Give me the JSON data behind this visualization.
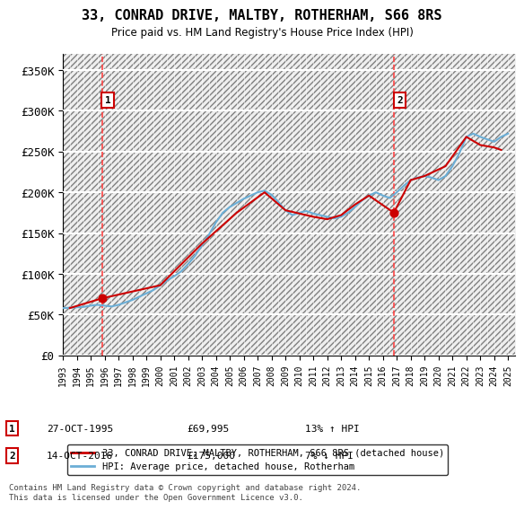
{
  "title": "33, CONRAD DRIVE, MALTBY, ROTHERHAM, S66 8RS",
  "subtitle": "Price paid vs. HM Land Registry's House Price Index (HPI)",
  "ylabel_ticks": [
    "£0",
    "£50K",
    "£100K",
    "£150K",
    "£200K",
    "£250K",
    "£300K",
    "£350K"
  ],
  "ytick_values": [
    0,
    50000,
    100000,
    150000,
    200000,
    250000,
    300000,
    350000
  ],
  "ylim": [
    0,
    370000
  ],
  "xlim_start": 1993.0,
  "xlim_end": 2025.5,
  "hpi_color": "#6baed6",
  "price_color": "#cc0000",
  "dashed_line_color": "#ff4444",
  "background_hatch_color": "#e8e8e8",
  "legend_label_price": "33, CONRAD DRIVE, MALTBY, ROTHERHAM, S66 8RS (detached house)",
  "legend_label_hpi": "HPI: Average price, detached house, Rotherham",
  "transaction1_date": "27-OCT-1995",
  "transaction1_price": 69995,
  "transaction1_pct": "13% ↑ HPI",
  "transaction1_year": 1995.82,
  "transaction2_date": "14-OCT-2016",
  "transaction2_price": 175000,
  "transaction2_pct": "7% ↓ HPI",
  "transaction2_year": 2016.79,
  "footnote": "Contains HM Land Registry data © Crown copyright and database right 2024.\nThis data is licensed under the Open Government Licence v3.0.",
  "hpi_years": [
    1993,
    1993.5,
    1994,
    1994.5,
    1995,
    1995.5,
    1996,
    1996.5,
    1997,
    1997.5,
    1998,
    1998.5,
    1999,
    1999.5,
    2000,
    2000.5,
    2001,
    2001.5,
    2002,
    2002.5,
    2003,
    2003.5,
    2004,
    2004.5,
    2005,
    2005.5,
    2006,
    2006.5,
    2007,
    2007.5,
    2008,
    2008.5,
    2009,
    2009.5,
    2010,
    2010.5,
    2011,
    2011.5,
    2012,
    2012.5,
    2013,
    2013.5,
    2014,
    2014.5,
    2015,
    2015.5,
    2016,
    2016.5,
    2017,
    2017.5,
    2018,
    2018.5,
    2019,
    2019.5,
    2020,
    2020.5,
    2021,
    2021.5,
    2022,
    2022.5,
    2023,
    2023.5,
    2024,
    2024.5,
    2025
  ],
  "hpi_values": [
    58000,
    58500,
    59000,
    59500,
    61000,
    62000,
    61000,
    60000,
    62000,
    65000,
    68000,
    72000,
    76000,
    80000,
    86000,
    92000,
    97000,
    103000,
    112000,
    122000,
    135000,
    148000,
    163000,
    175000,
    182000,
    187000,
    192000,
    196000,
    200000,
    202000,
    197000,
    188000,
    178000,
    172000,
    175000,
    177000,
    174000,
    172000,
    170000,
    168000,
    170000,
    175000,
    182000,
    190000,
    196000,
    200000,
    196000,
    193000,
    200000,
    208000,
    215000,
    218000,
    220000,
    218000,
    215000,
    220000,
    232000,
    248000,
    268000,
    272000,
    268000,
    265000,
    262000,
    268000,
    272000
  ],
  "price_years": [
    1993.5,
    1995.82,
    2000,
    2003,
    2005.5,
    2007.5,
    2009,
    2010,
    2011,
    2012,
    2013,
    2014,
    2015,
    2016.79,
    2018,
    2019,
    2020.5,
    2022,
    2023,
    2024,
    2024.5
  ],
  "price_values": [
    58000,
    69995,
    86000,
    137000,
    175000,
    200000,
    178000,
    174000,
    170000,
    167000,
    172000,
    185000,
    196000,
    175000,
    215000,
    220000,
    232000,
    268000,
    258000,
    255000,
    252000
  ]
}
